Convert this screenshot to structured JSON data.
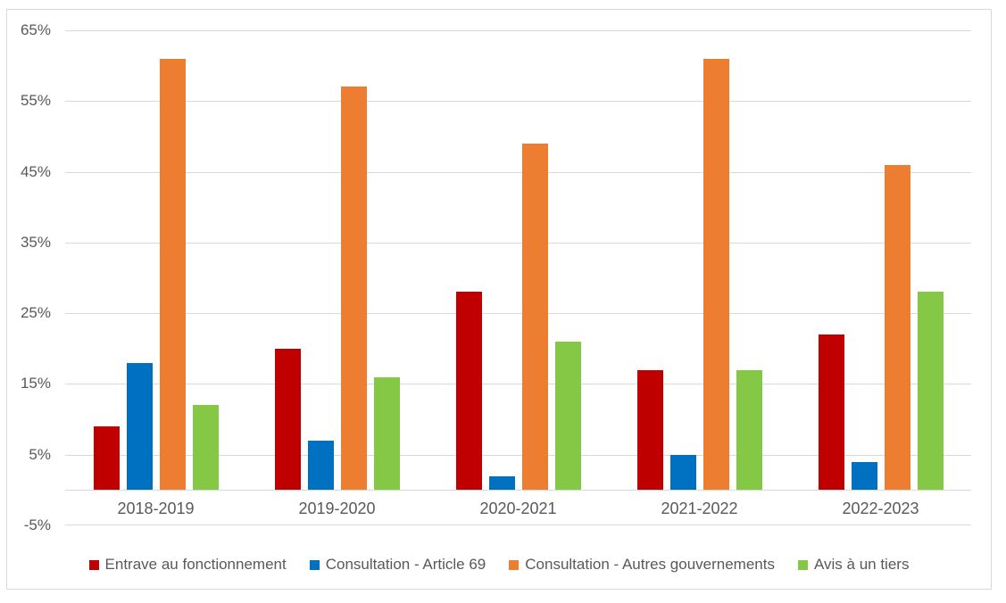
{
  "chart_data": {
    "type": "bar",
    "title": "",
    "categories": [
      "2018-2019",
      "2019-2020",
      "2020-2021",
      "2021-2022",
      "2022-2023"
    ],
    "series": [
      {
        "name": "Entrave au fonctionnement",
        "color": "#C00000",
        "values": [
          9,
          20,
          28,
          17,
          22
        ]
      },
      {
        "name": "Consultation - Article 69",
        "color": "#0070C0",
        "values": [
          18,
          7,
          2,
          5,
          4
        ]
      },
      {
        "name": "Consultation - Autres gouvernements",
        "color": "#ED7D31",
        "values": [
          61,
          57,
          49,
          61,
          46
        ]
      },
      {
        "name": "Avis à un tiers",
        "color": "#85C845",
        "values": [
          12,
          16,
          21,
          17,
          28
        ]
      }
    ],
    "unit": "%",
    "ylim": [
      -5,
      65
    ],
    "ytick_step": 10,
    "ytick_labels": [
      "65%",
      "55%",
      "45%",
      "35%",
      "25%",
      "15%",
      "5%",
      "-5%"
    ],
    "grid": true,
    "legend_position": "bottom",
    "grid_color": "#D9D9D9",
    "axis_line_color": "#D9D9D9",
    "border_color": "#D9D9D9",
    "label_color": "#595959",
    "background": "#FFFFFF"
  }
}
